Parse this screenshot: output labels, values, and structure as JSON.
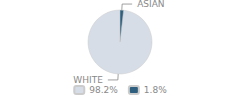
{
  "chart_data": {
    "type": "pie",
    "categories": [
      "WHITE",
      "ASIAN"
    ],
    "values": [
      98.2,
      1.8
    ],
    "value_labels": [
      "98.2%",
      "1.8%"
    ],
    "colors": [
      "#d6dde6",
      "#2e5f7e"
    ],
    "legend": "bottom"
  }
}
